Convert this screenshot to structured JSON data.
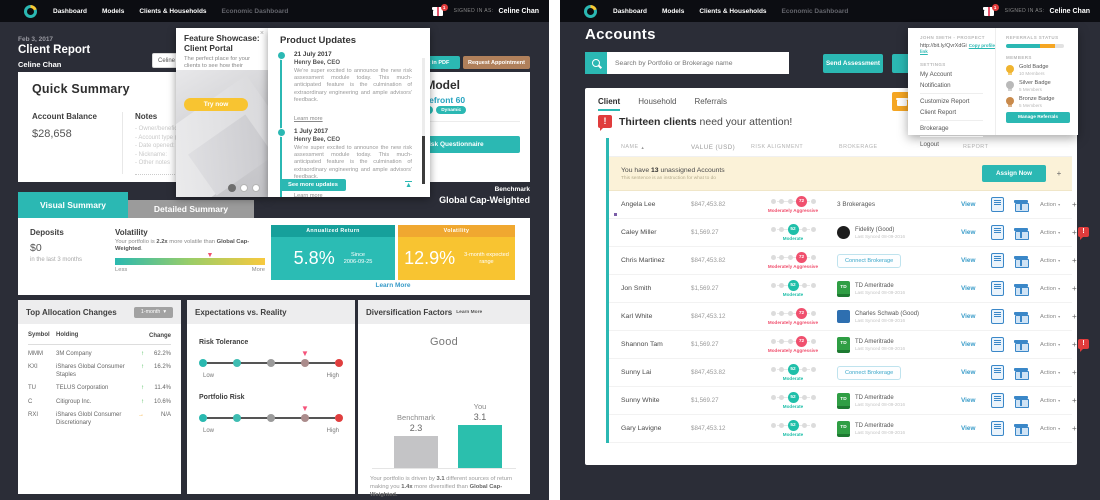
{
  "nav": {
    "items": [
      {
        "label": "Dashboard",
        "dim": false
      },
      {
        "label": "Models",
        "dim": false
      },
      {
        "label": "Clients & Households",
        "dim": false
      },
      {
        "label": "Economic Dashboard",
        "dim": true
      }
    ],
    "signed_in_label": "SIGNED IN AS:",
    "user_name": "Celine Chan",
    "notification_count": "1"
  },
  "left": {
    "date": "Feb 3, 2017",
    "page_title": "Client Report",
    "client_name": "Celine Chan",
    "client_chip": "Celine",
    "report_pdf_button": "Report in PDF",
    "request_appointment_button": "Request Appointment",
    "quick_summary": {
      "title": "Quick Summary",
      "balance_label": "Account Balance",
      "balance_value": "$28,658",
      "notes_label": "Notes",
      "notes": [
        "- Owner/benefic",
        "- Account type (",
        "- Date opened:",
        "- Nickname:",
        "- Other notes"
      ]
    },
    "assigned_model": {
      "title": "Assigned Model",
      "model_name": "Wavefront 60",
      "badges": [
        "NEW",
        "Dynamic"
      ],
      "cta": "Take Risk Questionnaire"
    },
    "benchmark_label": "Benchmark",
    "benchmark_name": "Global Cap-Weighted",
    "tabs": [
      {
        "label": "Visual Summary",
        "active": true
      },
      {
        "label": "Detailed Summary",
        "active": false
      }
    ],
    "summary": {
      "deposits_label": "Deposits",
      "deposits_value": "$0",
      "deposits_sub": "in the last 3 months",
      "volatility_label": "Volatility",
      "vol_p1": "Your portfolio is ",
      "vol_b1": "2.2x",
      "vol_p2": " more volatile than ",
      "vol_b2": "Global Cap-Weighted",
      "vol_p3": ".",
      "less": "Less",
      "more": "More",
      "annualized_header": "Annualized Return",
      "annualized_value": "5.8%",
      "annualized_sub1": "Since",
      "annualized_sub2": "2006-09-25",
      "volatility_header": "Volatility",
      "volatility_value": "12.9%",
      "volatility_sub1": "3-month expected",
      "volatility_sub2": "range",
      "learn_more": "Learn More"
    },
    "allocation": {
      "title": "Top Allocation Changes",
      "period": "1-month",
      "headers": [
        "Symbol",
        "Holding",
        "Change"
      ],
      "rows": [
        {
          "symbol": "MMM",
          "holding": "3M Company",
          "change": "62.2%",
          "dir": "up"
        },
        {
          "symbol": "KXI",
          "holding": "iShares Global Consumer Staples",
          "change": "16.2%",
          "dir": "up"
        },
        {
          "symbol": "TU",
          "holding": "TELUS Corporation",
          "change": "11.4%",
          "dir": "up"
        },
        {
          "symbol": "C",
          "holding": "Citigroup Inc.",
          "change": "10.6%",
          "dir": "up"
        },
        {
          "symbol": "RXI",
          "holding": "iShares Globl Consumer Discretionary",
          "change": "N/A",
          "dir": "flat"
        }
      ]
    },
    "expectations": {
      "title": "Expectations vs. Reality",
      "sliders": [
        {
          "label": "Risk Tolerance",
          "low": "Low",
          "high": "High"
        },
        {
          "label": "Portfolio Risk",
          "low": "Low",
          "high": "High"
        }
      ]
    },
    "diversification": {
      "title": "Diversification Factors",
      "learn_more": "Learn More",
      "rating": "Good",
      "bars": [
        {
          "label": "Benchmark",
          "value": "2.3"
        },
        {
          "label": "You",
          "value": "3.1"
        }
      ],
      "cap_p1": "Your portfolio is driven by ",
      "cap_b1": "3.1",
      "cap_p2": " different sources of return making you ",
      "cap_b2": "1.4x",
      "cap_p3": " more diversified than ",
      "cap_b3": "Global Cap-Weighted",
      "cap_p4": "."
    },
    "showcase": {
      "title_line1": "Feature Showcase:",
      "title_line2": "Client Portal",
      "body": "The perfect place for your clients to see how their investments are doing.",
      "cta": "Try now",
      "close": "×"
    },
    "updates": {
      "title": "Product Updates",
      "entries": [
        {
          "date": "21 July 2017",
          "author": "Henry Bee, CEO",
          "body": "We're super excited to announce the new risk assessment module today. This much-anticipated feature is the culmination of extraordinary engineering and ample advisors' feedback.",
          "link": "Learn more"
        },
        {
          "date": "1 July 2017",
          "author": "Henry Bee, CEO",
          "body": "We're super excited to announce the new risk assessment module today. This much-anticipated feature is the culmination of extraordinary engineering and ample advisors' feedback.",
          "link": "Learn more"
        }
      ],
      "see_more": "See more updates"
    }
  },
  "right": {
    "page_title": "Accounts",
    "search_placeholder": "Search by Portfolio or Brokerage name",
    "send_assessment": "Send Assessment",
    "tabs": [
      {
        "label": "Client",
        "active": true
      },
      {
        "label": "Household",
        "active": false
      },
      {
        "label": "Referrals",
        "active": false
      }
    ],
    "alert_bold": "Thirteen clients",
    "alert_rest": " need your attention!",
    "table": {
      "headers": [
        "NAME",
        "VALUE (USD)",
        "RISK ALIGNMENT",
        "BROKERAGE",
        "REPORT"
      ],
      "banner_p1": "You have ",
      "banner_b1": "13",
      "banner_p2": " unassigned Accounts",
      "banner_sub": "This sentence is an instruction for what to do",
      "assign_button": "Assign Now",
      "plus_label": "+",
      "view_label": "View",
      "action_label": "Action",
      "connect_label": "Connect Brokerage",
      "td_logo_text": "TD",
      "rows": [
        {
          "name": "Angela Lee",
          "bullet": true,
          "value": "$847,453.82",
          "risk": {
            "score": "72",
            "label": "Moderately Aggressive",
            "level": "aggressive",
            "dot": 4
          },
          "brokerage": {
            "type": "text",
            "name": "3 Brokerages"
          },
          "alert": false
        },
        {
          "name": "Caley Miller",
          "bullet": false,
          "value": "$1,569.27",
          "risk": {
            "score": "52",
            "label": "Moderate",
            "level": "moderate",
            "dot": 3
          },
          "brokerage": {
            "type": "logo",
            "logo": "fidelity",
            "name": "Fidelity (Good)",
            "sync": "Last Synced 08-09-2016"
          },
          "alert": true
        },
        {
          "name": "Chris Martinez",
          "bullet": false,
          "value": "$847,453.82",
          "risk": {
            "score": "72",
            "label": "Moderately Aggressive",
            "level": "aggressive",
            "dot": 4
          },
          "brokerage": {
            "type": "connect"
          },
          "alert": false
        },
        {
          "name": "Jon Smith",
          "bullet": false,
          "value": "$1,569.27",
          "risk": {
            "score": "52",
            "label": "Moderate",
            "level": "moderate",
            "dot": 3
          },
          "brokerage": {
            "type": "logo",
            "logo": "td",
            "name": "TD Ameritrade",
            "sync": "Last Synced 08-09-2016"
          },
          "alert": false
        },
        {
          "name": "Karl White",
          "bullet": false,
          "value": "$847,453.12",
          "risk": {
            "score": "72",
            "label": "Moderately Aggressive",
            "level": "aggressive",
            "dot": 4
          },
          "brokerage": {
            "type": "logo",
            "logo": "schwab",
            "name": "Charles Schwab (Good)",
            "sync": "Last Synced 08-09-2016"
          },
          "alert": false
        },
        {
          "name": "Shannon Tam",
          "bullet": false,
          "value": "$1,569.27",
          "risk": {
            "score": "72",
            "label": "Moderately Aggressive",
            "level": "aggressive",
            "dot": 4
          },
          "brokerage": {
            "type": "logo",
            "logo": "td",
            "name": "TD Ameritrade",
            "sync": "Last Synced 08-09-2016"
          },
          "alert": true
        },
        {
          "name": "Sunny Lai",
          "bullet": false,
          "value": "$847,453.82",
          "risk": {
            "score": "52",
            "label": "Moderate",
            "level": "moderate",
            "dot": 3
          },
          "brokerage": {
            "type": "connect"
          },
          "alert": false
        },
        {
          "name": "Sunny White",
          "bullet": false,
          "value": "$1,569.27",
          "risk": {
            "score": "52",
            "label": "Moderate",
            "level": "moderate",
            "dot": 3
          },
          "brokerage": {
            "type": "logo",
            "logo": "td",
            "name": "TD Ameritrade",
            "sync": "Last Synced 08-09-2016"
          },
          "alert": false
        },
        {
          "name": "Gary Lavigne",
          "bullet": false,
          "value": "$847,453.12",
          "risk": {
            "score": "52",
            "label": "Moderate",
            "level": "moderate",
            "dot": 3
          },
          "brokerage": {
            "type": "logo",
            "logo": "td",
            "name": "TD Ameritrade",
            "sync": "Last Synced 08-09-2016"
          },
          "alert": false
        }
      ]
    },
    "menu": {
      "prospect": "JOHN SMITH - PROSPECT",
      "url": "http://bit.ly/QvrXdGi",
      "copy_link": "Copy profile link",
      "settings_label": "SETTINGS",
      "group1": [
        "My Account",
        "Notification"
      ],
      "group2": [
        "Customize Report",
        "Client Report"
      ],
      "group3": [
        "Brokerage"
      ],
      "group4": [
        "Logout"
      ],
      "referrals_label": "REFERRALS STATUS",
      "members_label": "MEMBERS",
      "badges": [
        {
          "tier": "gold",
          "name": "Gold Badge",
          "count": "10 Members"
        },
        {
          "tier": "silver",
          "name": "Silver Badge",
          "count": "5 Members"
        },
        {
          "tier": "bronze",
          "name": "Bronze Badge",
          "count": "5 Members"
        }
      ],
      "manage_button": "Manage Referrals"
    }
  },
  "colors": {
    "accent_teal": "#2bb8b3",
    "accent_yellow": "#f8c431",
    "alert_red": "#e03c3c",
    "risk_red": "#f0506e",
    "risk_teal": "#1fbfa9",
    "tan": "#b0805b",
    "expect_dot_colors": [
      "#2ab9b0",
      "#3fbdb2",
      "#9b9b9b",
      "#ab8c8c",
      "#e03e3e"
    ]
  }
}
